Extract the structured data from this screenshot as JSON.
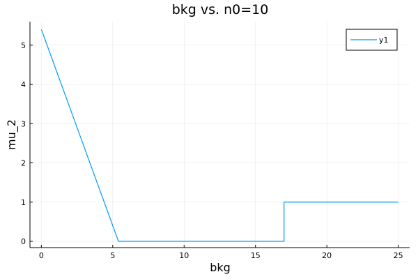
{
  "chart_data": {
    "type": "line",
    "title": "bkg vs. n0=10",
    "xlabel": "bkg",
    "ylabel": "mu_2",
    "xlim": [
      -0.8,
      25.8
    ],
    "ylim": [
      -0.16,
      5.6
    ],
    "xticks": [
      0,
      5,
      10,
      15,
      20,
      25
    ],
    "yticks": [
      0,
      1,
      2,
      3,
      4,
      5
    ],
    "grid": true,
    "legend_position": "top-right",
    "series": [
      {
        "name": "y1",
        "color": "#009af9",
        "x": [
          0,
          5.4,
          17.0,
          17.0,
          25
        ],
        "y": [
          5.4,
          0,
          0,
          1,
          1
        ]
      }
    ]
  }
}
